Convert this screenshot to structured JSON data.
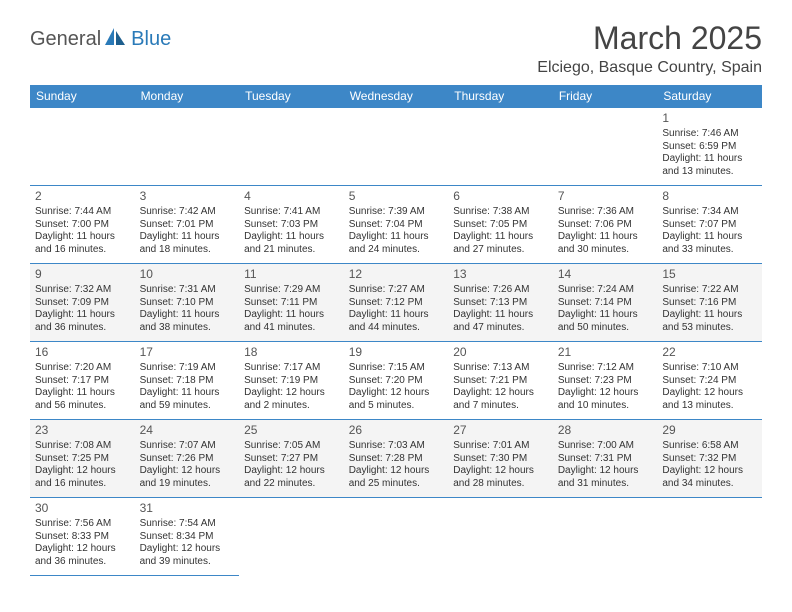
{
  "logo": {
    "part1": "General",
    "part2": "Blue"
  },
  "title": "March 2025",
  "location": "Elciego, Basque Country, Spain",
  "colors": {
    "header_bg": "#3d87c7",
    "header_text": "#ffffff",
    "border": "#3d87c7",
    "alt_row": "#f4f4f4",
    "logo_accent": "#2a7ab8",
    "text": "#333333"
  },
  "weekdays": [
    "Sunday",
    "Monday",
    "Tuesday",
    "Wednesday",
    "Thursday",
    "Friday",
    "Saturday"
  ],
  "weeks": [
    [
      null,
      null,
      null,
      null,
      null,
      null,
      {
        "n": "1",
        "sr": "Sunrise: 7:46 AM",
        "ss": "Sunset: 6:59 PM",
        "dl": "Daylight: 11 hours and 13 minutes."
      }
    ],
    [
      {
        "n": "2",
        "sr": "Sunrise: 7:44 AM",
        "ss": "Sunset: 7:00 PM",
        "dl": "Daylight: 11 hours and 16 minutes."
      },
      {
        "n": "3",
        "sr": "Sunrise: 7:42 AM",
        "ss": "Sunset: 7:01 PM",
        "dl": "Daylight: 11 hours and 18 minutes."
      },
      {
        "n": "4",
        "sr": "Sunrise: 7:41 AM",
        "ss": "Sunset: 7:03 PM",
        "dl": "Daylight: 11 hours and 21 minutes."
      },
      {
        "n": "5",
        "sr": "Sunrise: 7:39 AM",
        "ss": "Sunset: 7:04 PM",
        "dl": "Daylight: 11 hours and 24 minutes."
      },
      {
        "n": "6",
        "sr": "Sunrise: 7:38 AM",
        "ss": "Sunset: 7:05 PM",
        "dl": "Daylight: 11 hours and 27 minutes."
      },
      {
        "n": "7",
        "sr": "Sunrise: 7:36 AM",
        "ss": "Sunset: 7:06 PM",
        "dl": "Daylight: 11 hours and 30 minutes."
      },
      {
        "n": "8",
        "sr": "Sunrise: 7:34 AM",
        "ss": "Sunset: 7:07 PM",
        "dl": "Daylight: 11 hours and 33 minutes."
      }
    ],
    [
      {
        "n": "9",
        "sr": "Sunrise: 7:32 AM",
        "ss": "Sunset: 7:09 PM",
        "dl": "Daylight: 11 hours and 36 minutes."
      },
      {
        "n": "10",
        "sr": "Sunrise: 7:31 AM",
        "ss": "Sunset: 7:10 PM",
        "dl": "Daylight: 11 hours and 38 minutes."
      },
      {
        "n": "11",
        "sr": "Sunrise: 7:29 AM",
        "ss": "Sunset: 7:11 PM",
        "dl": "Daylight: 11 hours and 41 minutes."
      },
      {
        "n": "12",
        "sr": "Sunrise: 7:27 AM",
        "ss": "Sunset: 7:12 PM",
        "dl": "Daylight: 11 hours and 44 minutes."
      },
      {
        "n": "13",
        "sr": "Sunrise: 7:26 AM",
        "ss": "Sunset: 7:13 PM",
        "dl": "Daylight: 11 hours and 47 minutes."
      },
      {
        "n": "14",
        "sr": "Sunrise: 7:24 AM",
        "ss": "Sunset: 7:14 PM",
        "dl": "Daylight: 11 hours and 50 minutes."
      },
      {
        "n": "15",
        "sr": "Sunrise: 7:22 AM",
        "ss": "Sunset: 7:16 PM",
        "dl": "Daylight: 11 hours and 53 minutes."
      }
    ],
    [
      {
        "n": "16",
        "sr": "Sunrise: 7:20 AM",
        "ss": "Sunset: 7:17 PM",
        "dl": "Daylight: 11 hours and 56 minutes."
      },
      {
        "n": "17",
        "sr": "Sunrise: 7:19 AM",
        "ss": "Sunset: 7:18 PM",
        "dl": "Daylight: 11 hours and 59 minutes."
      },
      {
        "n": "18",
        "sr": "Sunrise: 7:17 AM",
        "ss": "Sunset: 7:19 PM",
        "dl": "Daylight: 12 hours and 2 minutes."
      },
      {
        "n": "19",
        "sr": "Sunrise: 7:15 AM",
        "ss": "Sunset: 7:20 PM",
        "dl": "Daylight: 12 hours and 5 minutes."
      },
      {
        "n": "20",
        "sr": "Sunrise: 7:13 AM",
        "ss": "Sunset: 7:21 PM",
        "dl": "Daylight: 12 hours and 7 minutes."
      },
      {
        "n": "21",
        "sr": "Sunrise: 7:12 AM",
        "ss": "Sunset: 7:23 PM",
        "dl": "Daylight: 12 hours and 10 minutes."
      },
      {
        "n": "22",
        "sr": "Sunrise: 7:10 AM",
        "ss": "Sunset: 7:24 PM",
        "dl": "Daylight: 12 hours and 13 minutes."
      }
    ],
    [
      {
        "n": "23",
        "sr": "Sunrise: 7:08 AM",
        "ss": "Sunset: 7:25 PM",
        "dl": "Daylight: 12 hours and 16 minutes."
      },
      {
        "n": "24",
        "sr": "Sunrise: 7:07 AM",
        "ss": "Sunset: 7:26 PM",
        "dl": "Daylight: 12 hours and 19 minutes."
      },
      {
        "n": "25",
        "sr": "Sunrise: 7:05 AM",
        "ss": "Sunset: 7:27 PM",
        "dl": "Daylight: 12 hours and 22 minutes."
      },
      {
        "n": "26",
        "sr": "Sunrise: 7:03 AM",
        "ss": "Sunset: 7:28 PM",
        "dl": "Daylight: 12 hours and 25 minutes."
      },
      {
        "n": "27",
        "sr": "Sunrise: 7:01 AM",
        "ss": "Sunset: 7:30 PM",
        "dl": "Daylight: 12 hours and 28 minutes."
      },
      {
        "n": "28",
        "sr": "Sunrise: 7:00 AM",
        "ss": "Sunset: 7:31 PM",
        "dl": "Daylight: 12 hours and 31 minutes."
      },
      {
        "n": "29",
        "sr": "Sunrise: 6:58 AM",
        "ss": "Sunset: 7:32 PM",
        "dl": "Daylight: 12 hours and 34 minutes."
      }
    ],
    [
      {
        "n": "30",
        "sr": "Sunrise: 7:56 AM",
        "ss": "Sunset: 8:33 PM",
        "dl": "Daylight: 12 hours and 36 minutes."
      },
      {
        "n": "31",
        "sr": "Sunrise: 7:54 AM",
        "ss": "Sunset: 8:34 PM",
        "dl": "Daylight: 12 hours and 39 minutes."
      },
      null,
      null,
      null,
      null,
      null
    ]
  ]
}
